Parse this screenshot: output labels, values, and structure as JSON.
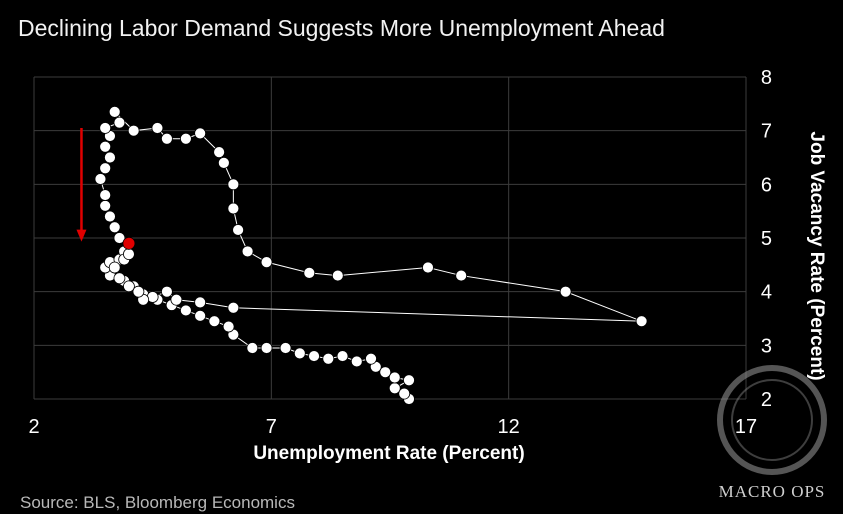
{
  "chart_data": {
    "type": "scatter",
    "connected": true,
    "title": "Declining Labor Demand Suggests More Unemployment Ahead",
    "xlabel": "Unemployment Rate (Percent)",
    "ylabel": "Job Vacancy Rate (Percent)",
    "xlim": [
      2,
      17
    ],
    "ylim": [
      2,
      8
    ],
    "xticks": [
      "2",
      "7",
      "12",
      "17"
    ],
    "yticks": [
      "2",
      "3",
      "4",
      "5",
      "6",
      "7",
      "8"
    ],
    "grid": true,
    "series": [
      {
        "name": "Job vacancy rate vs unemployment rate",
        "points": [
          [
            9.9,
            2.0
          ],
          [
            9.8,
            2.1
          ],
          [
            9.6,
            2.2
          ],
          [
            9.9,
            2.35
          ],
          [
            9.6,
            2.4
          ],
          [
            9.4,
            2.5
          ],
          [
            9.2,
            2.6
          ],
          [
            9.1,
            2.75
          ],
          [
            8.8,
            2.7
          ],
          [
            8.5,
            2.8
          ],
          [
            8.2,
            2.75
          ],
          [
            7.9,
            2.8
          ],
          [
            7.6,
            2.85
          ],
          [
            7.3,
            2.95
          ],
          [
            6.9,
            2.95
          ],
          [
            6.6,
            2.95
          ],
          [
            6.2,
            3.2
          ],
          [
            6.1,
            3.35
          ],
          [
            5.8,
            3.45
          ],
          [
            5.5,
            3.55
          ],
          [
            5.2,
            3.65
          ],
          [
            4.9,
            3.75
          ],
          [
            4.6,
            3.85
          ],
          [
            4.3,
            3.95
          ],
          [
            4.1,
            4.1
          ],
          [
            3.9,
            4.2
          ],
          [
            3.6,
            4.3
          ],
          [
            3.5,
            4.45
          ],
          [
            3.6,
            4.55
          ],
          [
            3.8,
            4.6
          ],
          [
            3.9,
            4.75
          ],
          [
            4.0,
            4.9
          ],
          [
            3.8,
            5.0
          ],
          [
            3.7,
            5.2
          ],
          [
            3.6,
            5.4
          ],
          [
            3.5,
            5.6
          ],
          [
            3.5,
            5.8
          ],
          [
            3.4,
            6.1
          ],
          [
            3.5,
            6.3
          ],
          [
            3.6,
            6.5
          ],
          [
            3.5,
            6.7
          ],
          [
            3.6,
            6.9
          ],
          [
            3.5,
            7.05
          ],
          [
            3.8,
            7.15
          ],
          [
            3.7,
            7.35
          ],
          [
            4.1,
            7.0
          ],
          [
            4.6,
            7.05
          ],
          [
            4.8,
            6.85
          ],
          [
            5.2,
            6.85
          ],
          [
            5.5,
            6.95
          ],
          [
            5.9,
            6.6
          ],
          [
            6.0,
            6.4
          ],
          [
            6.2,
            6.0
          ],
          [
            6.2,
            5.55
          ],
          [
            6.3,
            5.15
          ],
          [
            6.5,
            4.75
          ],
          [
            6.9,
            4.55
          ],
          [
            7.8,
            4.35
          ],
          [
            8.4,
            4.3
          ],
          [
            10.3,
            4.45
          ],
          [
            11.0,
            4.3
          ],
          [
            13.2,
            4.0
          ],
          [
            14.8,
            3.45
          ],
          [
            6.2,
            3.7
          ],
          [
            5.5,
            3.8
          ],
          [
            5.0,
            3.85
          ],
          [
            4.8,
            4.0
          ],
          [
            4.5,
            3.9
          ],
          [
            4.3,
            3.85
          ],
          [
            4.2,
            4.0
          ],
          [
            4.0,
            4.1
          ],
          [
            3.8,
            4.25
          ],
          [
            3.7,
            4.45
          ],
          [
            3.9,
            4.6
          ],
          [
            4.0,
            4.7
          ],
          [
            4.0,
            4.9
          ]
        ],
        "current_point": [
          4.0,
          4.9
        ],
        "point_color": "#ffffff",
        "current_color": "#e00000"
      }
    ],
    "annotations": [
      {
        "type": "arrow",
        "direction": "down",
        "color": "#e00000",
        "x": 3.0,
        "y_from": 7.05,
        "y_to": 4.95
      }
    ]
  },
  "source": "Source: BLS, Bloomberg Economics",
  "watermark": "MACRO OPS"
}
